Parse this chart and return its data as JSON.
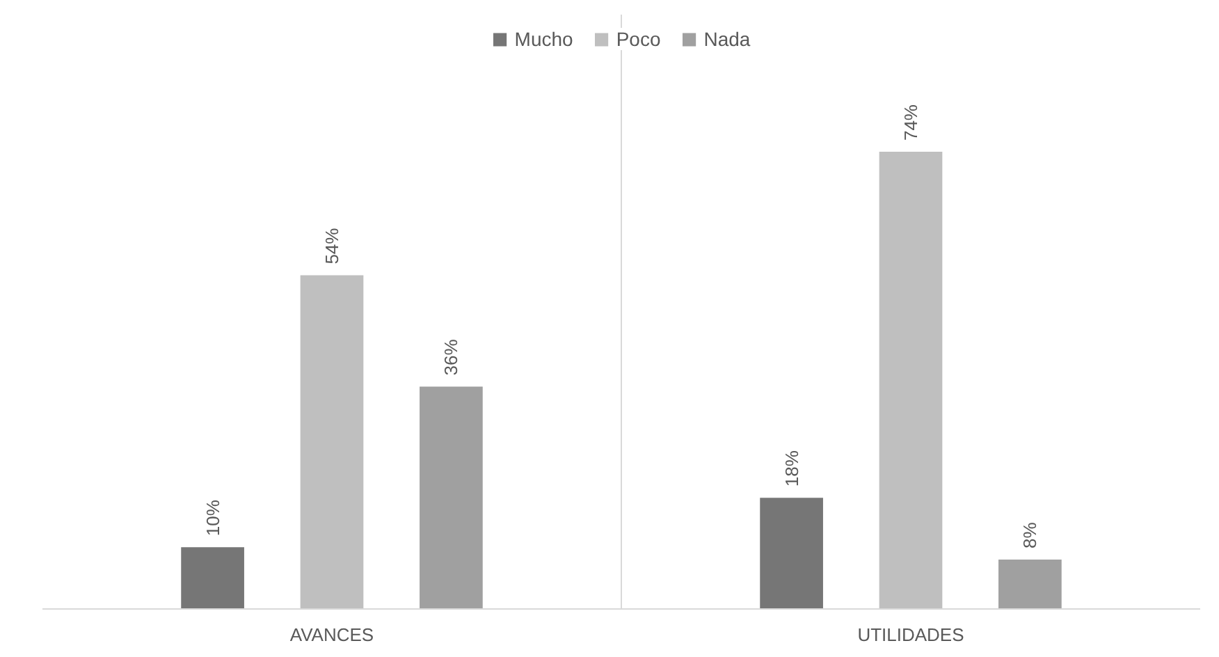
{
  "chart_data": {
    "type": "bar",
    "categories": [
      "AVANCES",
      "UTILIDADES"
    ],
    "series": [
      {
        "name": "Mucho",
        "color": "#767676",
        "values": [
          10,
          18
        ],
        "value_labels": [
          "10%",
          "18%"
        ]
      },
      {
        "name": "Poco",
        "color": "#bfbfbf",
        "values": [
          54,
          74
        ],
        "value_labels": [
          "54%",
          "74%"
        ]
      },
      {
        "name": "Nada",
        "color": "#a0a0a0",
        "values": [
          36,
          8
        ],
        "value_labels": [
          "36%",
          "8%"
        ]
      }
    ],
    "legend": "top",
    "grid": "x"
  }
}
